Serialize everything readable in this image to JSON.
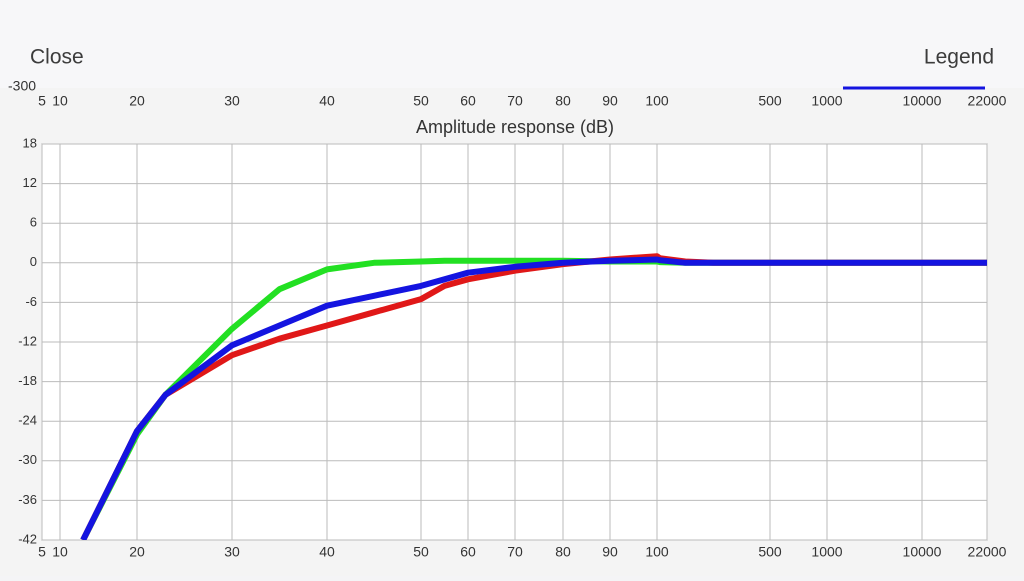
{
  "header": {
    "left_button": "Close",
    "right_button": "Legend"
  },
  "previous_axis_label": "-300",
  "chart_data": {
    "type": "line",
    "title": "Amplitude response (dB)",
    "x": [
      13,
      20,
      23,
      30,
      35,
      40,
      45,
      50,
      55,
      60,
      70,
      80,
      90,
      100,
      110,
      200,
      300,
      22000
    ],
    "series": [
      {
        "color": "#22e022",
        "values": [
          -42,
          -26,
          -20,
          -10,
          -4,
          -1,
          0,
          0.2,
          0.3,
          0.3,
          0.3,
          0.3,
          0.2,
          0.2,
          0.1,
          0,
          0,
          0
        ]
      },
      {
        "color": "#e01818",
        "values": [
          -42,
          -25.5,
          -20,
          -14,
          -11.5,
          -9.5,
          -7.5,
          -5.5,
          -3.5,
          -2.5,
          -1.2,
          -0.2,
          0.5,
          1,
          0.7,
          0.2,
          0,
          0
        ]
      },
      {
        "color": "#1414e0",
        "values": [
          -42,
          -25.5,
          -20,
          -12.5,
          -9.5,
          -6.5,
          -5,
          -3.5,
          -2.5,
          -1.5,
          -0.6,
          0,
          0.3,
          0.5,
          0.4,
          0,
          0,
          0
        ]
      }
    ],
    "xlim": [
      5,
      22000
    ],
    "xticks": [
      5,
      10,
      20,
      30,
      40,
      50,
      60,
      70,
      80,
      90,
      100,
      500,
      1000,
      10000,
      22000
    ],
    "ylim": [
      -42,
      18
    ],
    "yticks": [
      -42,
      -36,
      -30,
      -24,
      -18,
      -12,
      -6,
      0,
      6,
      12,
      18
    ],
    "grid": true
  }
}
